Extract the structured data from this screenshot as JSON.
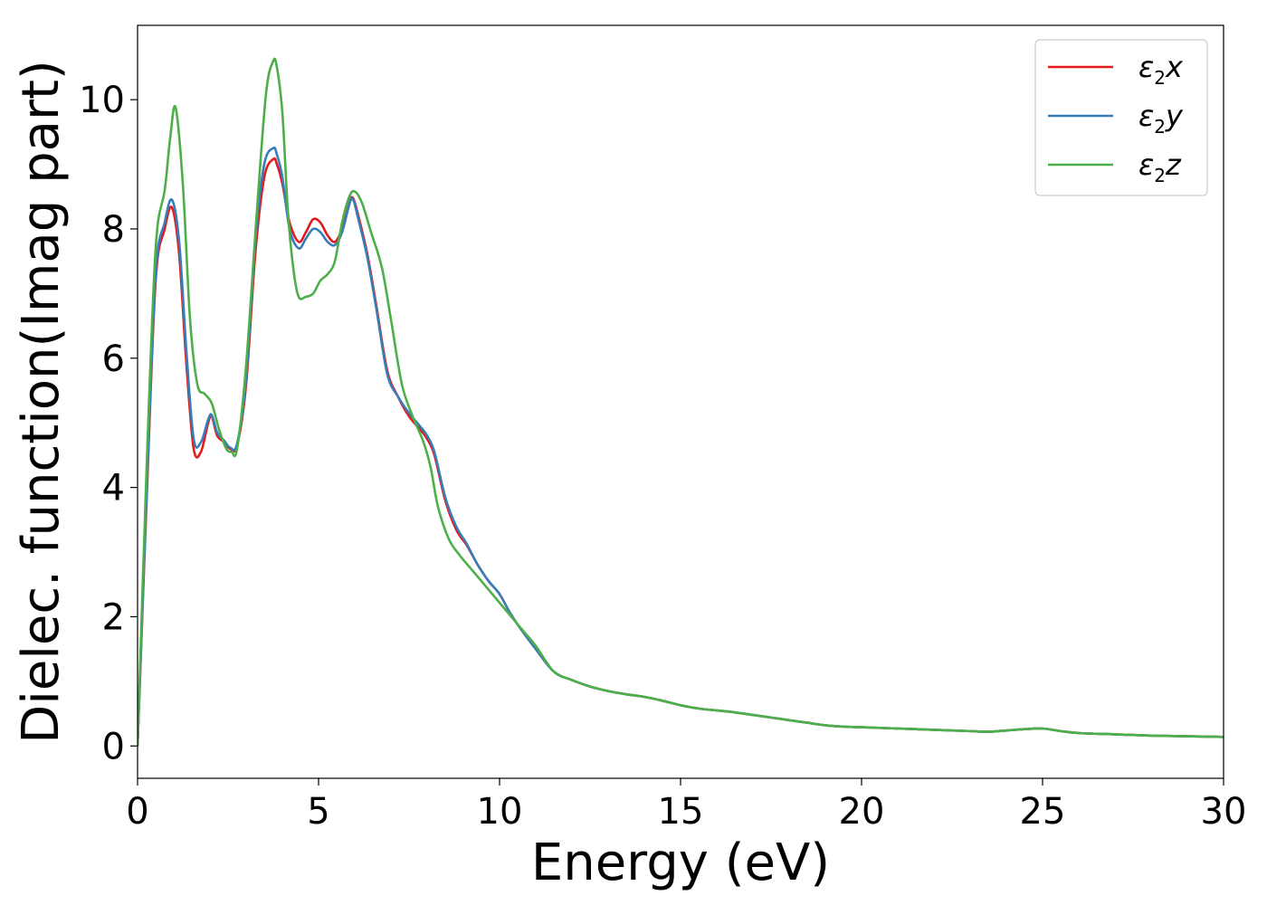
{
  "chart_data": {
    "type": "line",
    "title": "",
    "xlabel": "Energy (eV)",
    "ylabel": "Dielec. function(Imag part)",
    "xlim": [
      0,
      30
    ],
    "ylim": [
      -0.5,
      11.15
    ],
    "xticks": [
      0,
      5,
      10,
      15,
      20,
      25,
      30
    ],
    "yticks": [
      0,
      2,
      4,
      6,
      8,
      10
    ],
    "grid": false,
    "legend_placement": "top-right",
    "series": [
      {
        "name": "ε2x",
        "legend_base": "ε",
        "legend_sub": "2",
        "legend_var": "x",
        "color": "#e41a1c",
        "x": [
          0,
          0.25,
          0.5,
          0.75,
          0.95,
          1.15,
          1.35,
          1.55,
          1.75,
          1.95,
          2.05,
          2.2,
          2.4,
          2.55,
          2.75,
          3.0,
          3.25,
          3.5,
          3.75,
          3.85,
          4.0,
          4.2,
          4.45,
          4.65,
          4.85,
          5.05,
          5.25,
          5.45,
          5.65,
          5.85,
          5.95,
          6.1,
          6.35,
          6.6,
          6.9,
          7.2,
          7.5,
          7.8,
          8.0,
          8.2,
          8.5,
          8.8,
          9.1,
          9.4,
          9.7,
          10.0,
          10.3,
          10.6,
          11.0,
          11.5,
          12.0,
          12.5,
          13.0,
          13.5,
          14.0,
          14.5,
          15.0,
          15.5,
          16.0,
          16.5,
          17.0,
          17.5,
          18.0,
          18.5,
          19.0,
          19.5,
          20.0,
          21.0,
          22.0,
          23.0,
          23.5,
          24.0,
          24.5,
          25.0,
          25.5,
          26.0,
          27.0,
          28.0,
          29.0,
          30.0
        ],
        "y": [
          0.0,
          3.8,
          7.2,
          8.0,
          8.33,
          7.6,
          5.9,
          4.6,
          4.55,
          5.0,
          5.1,
          4.8,
          4.7,
          4.6,
          4.65,
          5.6,
          7.6,
          8.8,
          9.08,
          9.0,
          8.7,
          8.1,
          7.8,
          7.95,
          8.15,
          8.1,
          7.9,
          7.8,
          8.0,
          8.4,
          8.48,
          8.2,
          7.6,
          6.8,
          5.8,
          5.4,
          5.1,
          4.9,
          4.75,
          4.5,
          3.8,
          3.35,
          3.1,
          2.8,
          2.55,
          2.35,
          2.05,
          1.8,
          1.5,
          1.15,
          1.02,
          0.92,
          0.85,
          0.8,
          0.76,
          0.7,
          0.63,
          0.58,
          0.55,
          0.52,
          0.48,
          0.44,
          0.4,
          0.36,
          0.32,
          0.3,
          0.29,
          0.27,
          0.25,
          0.23,
          0.22,
          0.24,
          0.26,
          0.27,
          0.23,
          0.2,
          0.18,
          0.16,
          0.15,
          0.14
        ]
      },
      {
        "name": "ε2y",
        "legend_base": "ε",
        "legend_sub": "2",
        "legend_var": "y",
        "color": "#377eb8",
        "x": [
          0,
          0.25,
          0.5,
          0.75,
          0.95,
          1.15,
          1.35,
          1.55,
          1.75,
          1.95,
          2.05,
          2.2,
          2.4,
          2.55,
          2.75,
          3.0,
          3.25,
          3.5,
          3.75,
          3.85,
          4.0,
          4.2,
          4.45,
          4.65,
          4.85,
          5.05,
          5.25,
          5.45,
          5.65,
          5.85,
          5.95,
          6.1,
          6.35,
          6.6,
          6.9,
          7.2,
          7.5,
          7.8,
          8.0,
          8.2,
          8.5,
          8.8,
          9.1,
          9.4,
          9.7,
          10.0,
          10.3,
          10.6,
          11.0,
          11.5,
          12.0,
          12.5,
          13.0,
          13.5,
          14.0,
          14.5,
          15.0,
          15.5,
          16.0,
          16.5,
          17.0,
          17.5,
          18.0,
          18.5,
          19.0,
          19.5,
          20.0,
          21.0,
          22.0,
          23.0,
          23.5,
          24.0,
          24.5,
          25.0,
          25.5,
          26.0,
          27.0,
          28.0,
          29.0,
          30.0
        ],
        "y": [
          0.0,
          3.9,
          7.3,
          8.1,
          8.45,
          7.8,
          6.1,
          4.75,
          4.7,
          5.05,
          5.12,
          4.85,
          4.72,
          4.62,
          4.68,
          5.7,
          7.8,
          9.0,
          9.25,
          9.15,
          8.8,
          8.0,
          7.7,
          7.85,
          8.0,
          7.95,
          7.8,
          7.75,
          7.95,
          8.38,
          8.46,
          8.15,
          7.55,
          6.75,
          5.75,
          5.4,
          5.15,
          4.95,
          4.8,
          4.55,
          3.85,
          3.4,
          3.12,
          2.8,
          2.55,
          2.35,
          2.05,
          1.8,
          1.5,
          1.15,
          1.02,
          0.92,
          0.85,
          0.8,
          0.76,
          0.7,
          0.63,
          0.58,
          0.55,
          0.52,
          0.48,
          0.44,
          0.4,
          0.36,
          0.32,
          0.3,
          0.29,
          0.27,
          0.25,
          0.23,
          0.22,
          0.24,
          0.26,
          0.27,
          0.23,
          0.2,
          0.18,
          0.16,
          0.15,
          0.14
        ]
      },
      {
        "name": "ε2z",
        "legend_base": "ε",
        "legend_sub": "2",
        "legend_var": "z",
        "color": "#4daf4a",
        "x": [
          0,
          0.25,
          0.5,
          0.75,
          0.9,
          1.05,
          1.25,
          1.45,
          1.65,
          1.85,
          2.05,
          2.25,
          2.45,
          2.6,
          2.75,
          3.0,
          3.3,
          3.55,
          3.75,
          3.85,
          4.0,
          4.15,
          4.3,
          4.45,
          4.65,
          4.85,
          5.05,
          5.25,
          5.45,
          5.65,
          5.85,
          6.0,
          6.2,
          6.45,
          6.75,
          7.0,
          7.3,
          7.6,
          7.9,
          8.1,
          8.3,
          8.6,
          8.9,
          9.2,
          9.5,
          9.8,
          10.1,
          10.4,
          10.7,
          11.0,
          11.5,
          12.0,
          12.5,
          13.0,
          13.5,
          14.0,
          14.5,
          15.0,
          15.5,
          16.0,
          16.5,
          17.0,
          17.5,
          18.0,
          18.5,
          19.0,
          19.5,
          20.0,
          21.0,
          22.0,
          23.0,
          23.5,
          24.0,
          24.5,
          25.0,
          25.5,
          26.0,
          27.0,
          28.0,
          29.0,
          30.0
        ],
        "y": [
          0.0,
          4.3,
          7.7,
          8.6,
          9.4,
          9.88,
          8.7,
          6.6,
          5.6,
          5.45,
          5.3,
          4.9,
          4.6,
          4.55,
          4.6,
          5.9,
          8.3,
          10.1,
          10.6,
          10.5,
          9.8,
          8.3,
          7.4,
          6.95,
          6.95,
          7.0,
          7.2,
          7.3,
          7.5,
          8.1,
          8.5,
          8.58,
          8.4,
          7.95,
          7.4,
          6.6,
          5.6,
          5.1,
          4.7,
          4.3,
          3.7,
          3.2,
          2.95,
          2.75,
          2.55,
          2.35,
          2.15,
          1.95,
          1.75,
          1.55,
          1.15,
          1.02,
          0.92,
          0.85,
          0.8,
          0.76,
          0.7,
          0.63,
          0.58,
          0.55,
          0.52,
          0.48,
          0.44,
          0.4,
          0.36,
          0.32,
          0.3,
          0.29,
          0.27,
          0.25,
          0.23,
          0.22,
          0.24,
          0.26,
          0.27,
          0.23,
          0.2,
          0.18,
          0.16,
          0.15,
          0.14
        ]
      }
    ]
  }
}
